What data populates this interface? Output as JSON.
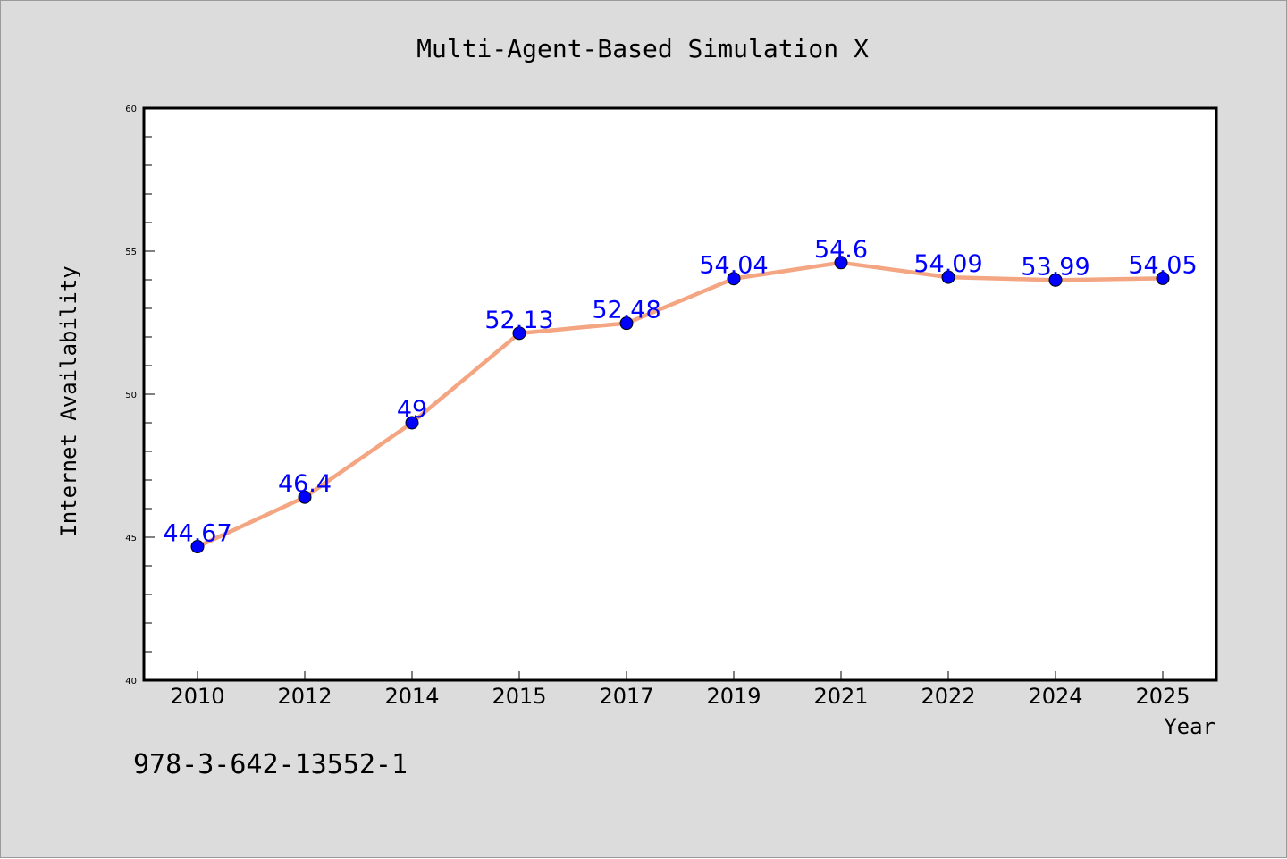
{
  "chart_data": {
    "type": "line",
    "title": "Multi-Agent-Based Simulation X",
    "xlabel": "Year",
    "ylabel": "Internet Availability",
    "categories": [
      "2010",
      "2012",
      "2014",
      "2015",
      "2017",
      "2019",
      "2021",
      "2022",
      "2024",
      "2025"
    ],
    "series": [
      {
        "values": [
          44.67,
          46.4,
          49,
          52.13,
          52.48,
          54.04,
          54.6,
          54.09,
          53.99,
          54.05
        ],
        "labels": [
          "44.67",
          "46.4",
          "49",
          "52.13",
          "52.48",
          "54.04",
          "54.6",
          "54.09",
          "53.99",
          "54.05"
        ],
        "line_color": "#f4a582",
        "marker_color": "#0000ff"
      }
    ],
    "ylim": [
      40,
      60
    ],
    "y_ticks": [
      "40",
      "45",
      "50",
      "55",
      "60"
    ],
    "grid": false,
    "legend": "none",
    "label_color": "#0000ff"
  },
  "footer_text": "978-3-642-13552-1",
  "colors": {
    "background": "#dcdcdc",
    "plot_background": "#ffffff",
    "axis": "#000000"
  }
}
